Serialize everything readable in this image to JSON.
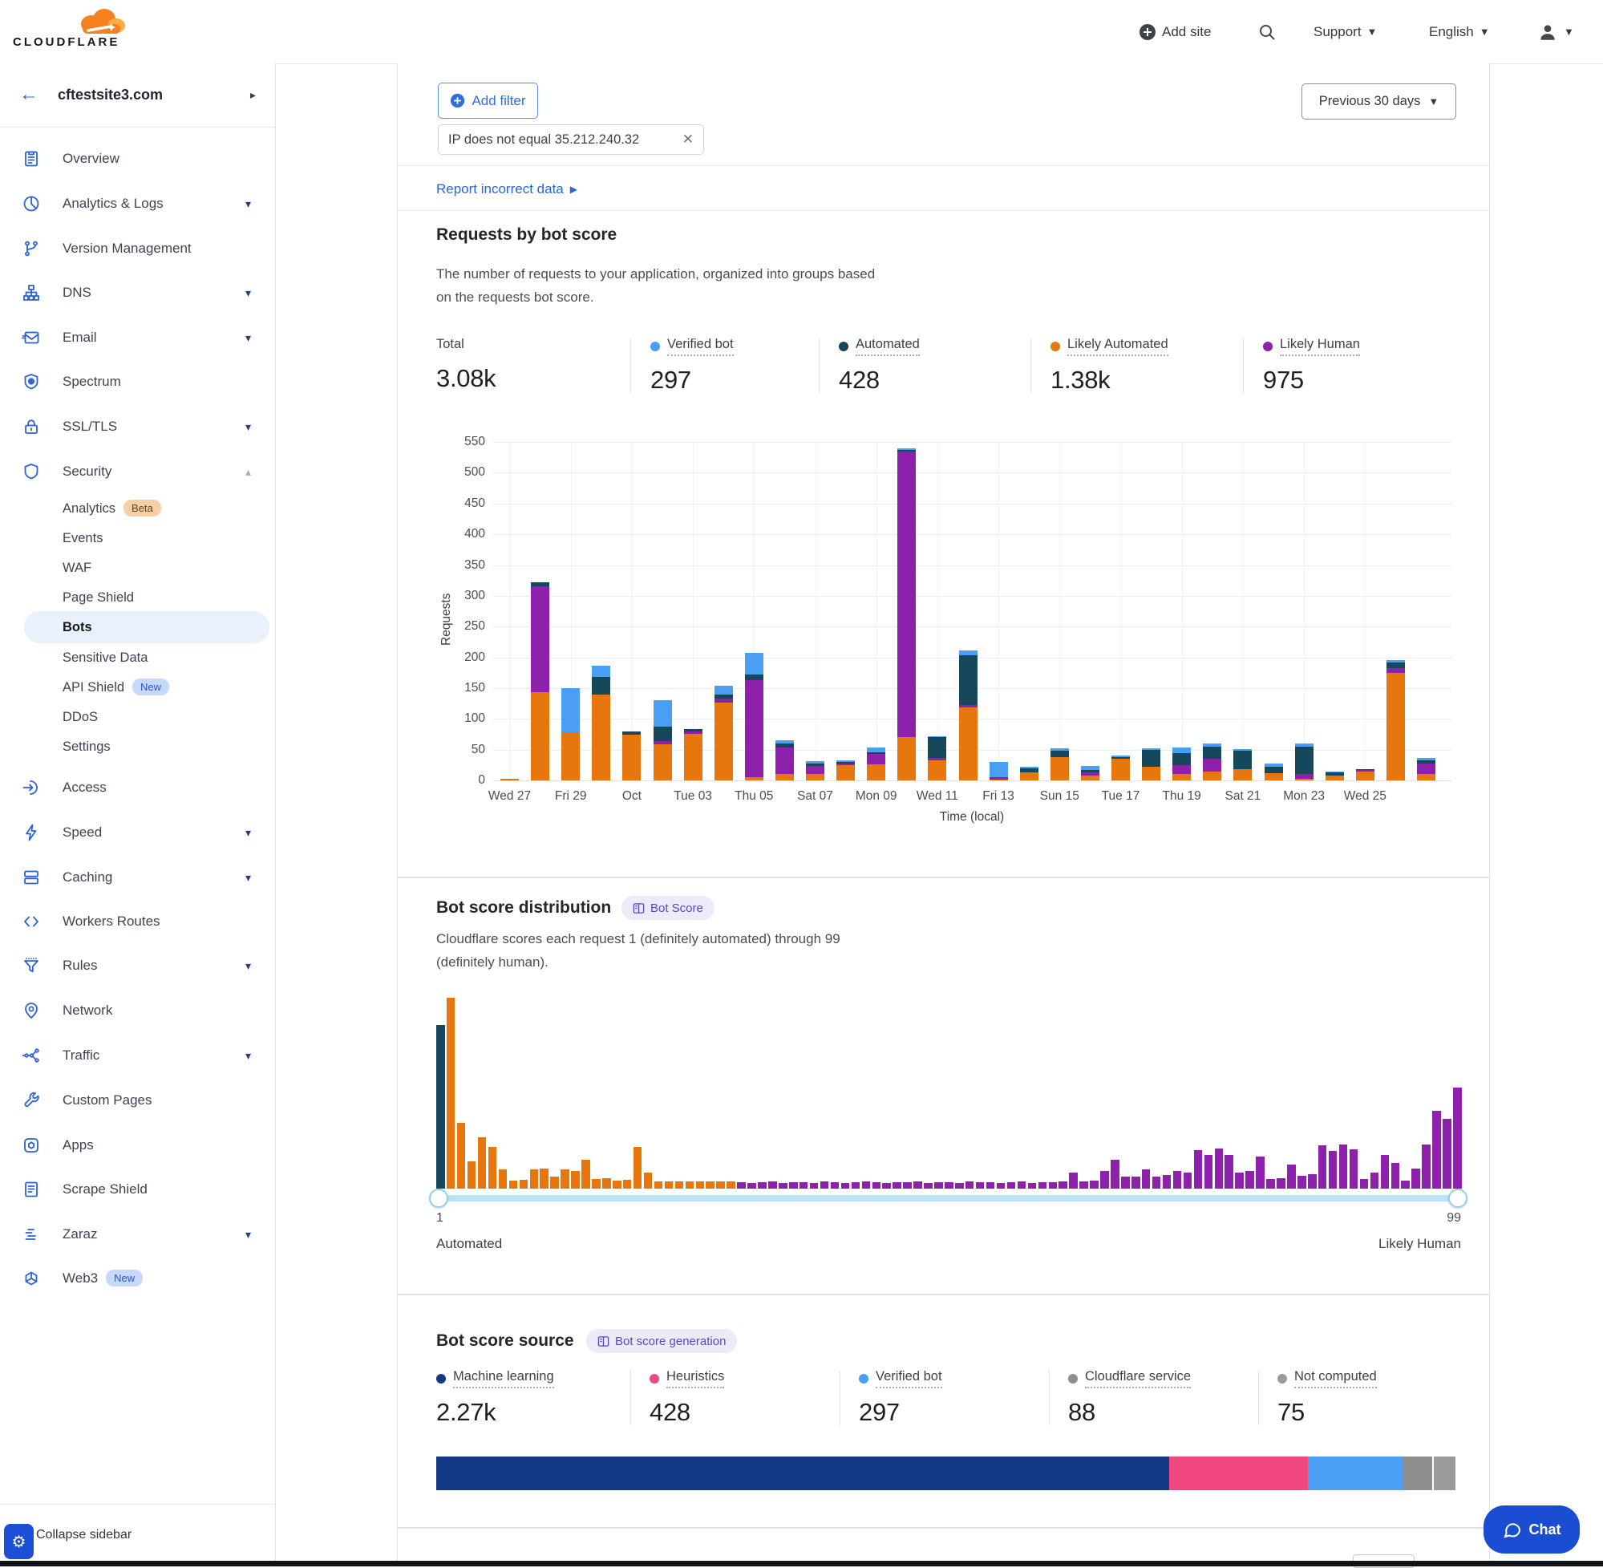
{
  "header": {
    "logo_text": "CLOUDFLARE",
    "add_site": "Add site",
    "support": "Support",
    "language": "English"
  },
  "sidebar": {
    "site": "cftestsite3.com",
    "items": [
      {
        "label": "Overview",
        "icon": "overview-icon"
      },
      {
        "label": "Analytics & Logs",
        "icon": "analytics-icon",
        "caret": "down"
      },
      {
        "label": "Version Management",
        "icon": "version-icon"
      },
      {
        "label": "DNS",
        "icon": "dns-icon",
        "caret": "down"
      },
      {
        "label": "Email",
        "icon": "email-icon",
        "caret": "down"
      },
      {
        "label": "Spectrum",
        "icon": "spectrum-icon"
      },
      {
        "label": "SSL/TLS",
        "icon": "lock-icon",
        "caret": "down"
      },
      {
        "label": "Security",
        "icon": "shield-icon",
        "caret": "up"
      },
      {
        "label": "Analytics",
        "sub": true,
        "badge": {
          "text": "Beta",
          "type": "beta"
        }
      },
      {
        "label": "Events",
        "sub": true
      },
      {
        "label": "WAF",
        "sub": true
      },
      {
        "label": "Page Shield",
        "sub": true
      },
      {
        "label": "Bots",
        "sub": true,
        "selected": true
      },
      {
        "label": "Sensitive Data",
        "sub": true
      },
      {
        "label": "API Shield",
        "sub": true,
        "badge": {
          "text": "New",
          "type": "new"
        }
      },
      {
        "label": "DDoS",
        "sub": true
      },
      {
        "label": "Settings",
        "sub": true
      },
      {
        "label": "Access",
        "icon": "access-icon"
      },
      {
        "label": "Speed",
        "icon": "lightning-icon",
        "caret": "down"
      },
      {
        "label": "Caching",
        "icon": "cache-icon",
        "caret": "down"
      },
      {
        "label": "Workers Routes",
        "icon": "workers-icon"
      },
      {
        "label": "Rules",
        "icon": "funnel-icon",
        "caret": "down"
      },
      {
        "label": "Network",
        "icon": "pin-icon"
      },
      {
        "label": "Traffic",
        "icon": "traffic-icon",
        "caret": "down"
      },
      {
        "label": "Custom Pages",
        "icon": "wrench-icon"
      },
      {
        "label": "Apps",
        "icon": "apps-icon"
      },
      {
        "label": "Scrape Shield",
        "icon": "document-icon"
      },
      {
        "label": "Zaraz",
        "icon": "zaraz-icon",
        "caret": "down"
      },
      {
        "label": "Web3",
        "icon": "web3-icon",
        "badge": {
          "text": "New",
          "type": "new"
        }
      }
    ],
    "collapse_label": "Collapse sidebar"
  },
  "filters": {
    "add_filter_label": "Add filter",
    "chip_label": "IP does not equal 35.212.240.32",
    "time_range": "Previous 30 days",
    "report_link": "Report incorrect data"
  },
  "requests_section": {
    "title": "Requests by bot score",
    "description": "The number of requests to your application, organized into groups based on the requests bot score.",
    "stats": [
      {
        "label": "Total",
        "value": "3.08k",
        "color": null
      },
      {
        "label": "Verified bot",
        "value": "297",
        "color": "#4a9ff5"
      },
      {
        "label": "Automated",
        "value": "428",
        "color": "#15485a"
      },
      {
        "label": "Likely Automated",
        "value": "1.38k",
        "color": "#e8760f"
      },
      {
        "label": "Likely Human",
        "value": "975",
        "color": "#8d21ab"
      }
    ]
  },
  "distribution_section": {
    "title": "Bot score distribution",
    "badge": "Bot Score",
    "description": "Cloudflare scores each request 1 (definitely automated) through 99 (definitely human).",
    "slider": {
      "min": "1",
      "max": "99",
      "min_label": "Automated",
      "max_label": "Likely Human"
    }
  },
  "source_section": {
    "title": "Bot score source",
    "badge": "Bot score generation",
    "stats": [
      {
        "label": "Machine learning",
        "value": "2.27k",
        "color": "#143a85"
      },
      {
        "label": "Heuristics",
        "value": "428",
        "color": "#f0487f"
      },
      {
        "label": "Verified bot",
        "value": "297",
        "color": "#4a9ff5"
      },
      {
        "label": "Cloudflare service",
        "value": "88",
        "color": "#8e8e8e"
      },
      {
        "label": "Not computed",
        "value": "75",
        "color": "#9b9b9b"
      }
    ]
  },
  "chat": {
    "label": "Chat"
  },
  "chart_data": [
    {
      "type": "bar",
      "stacked": true,
      "title": "Requests by bot score",
      "ylabel": "Requests",
      "xlabel": "Time (local)",
      "ylim": [
        0,
        550
      ],
      "ytick_step": 50,
      "grid": true,
      "categories": [
        "Sep 27",
        "Sep 28",
        "Sep 29",
        "Sep 30",
        "Oct 01",
        "Oct 02",
        "Oct 03",
        "Oct 04",
        "Oct 05",
        "Oct 06",
        "Oct 07",
        "Oct 08",
        "Oct 09",
        "Oct 10",
        "Oct 11",
        "Oct 12",
        "Oct 13",
        "Oct 14",
        "Oct 15",
        "Oct 16",
        "Oct 17",
        "Oct 18",
        "Oct 19",
        "Oct 20",
        "Oct 21",
        "Oct 22",
        "Oct 23",
        "Oct 24",
        "Oct 25",
        "Oct 26",
        "Oct 27"
      ],
      "x_tick_labels": [
        "Wed 27",
        "Fri 29",
        "Oct",
        "Tue 03",
        "Thu 05",
        "Sat 07",
        "Mon 09",
        "Wed 11",
        "Fri 13",
        "Sun 15",
        "Tue 17",
        "Thu 19",
        "Sat 21",
        "Mon 23",
        "Wed 25"
      ],
      "series": [
        {
          "name": "Likely Automated",
          "color": "#e8760f",
          "values": [
            3,
            143,
            78,
            140,
            75,
            59,
            76,
            127,
            5,
            11,
            11,
            25,
            26,
            70,
            33,
            119,
            2,
            13,
            38,
            8,
            35,
            22,
            10,
            15,
            18,
            12,
            3,
            8,
            15,
            175,
            10
          ]
        },
        {
          "name": "Likely Human",
          "color": "#8d21ab",
          "values": [
            0,
            172,
            0,
            0,
            0,
            5,
            4,
            6,
            158,
            42,
            12,
            3,
            17,
            465,
            3,
            3,
            3,
            0,
            0,
            5,
            0,
            0,
            15,
            20,
            0,
            0,
            7,
            0,
            2,
            7,
            18
          ]
        },
        {
          "name": "Automated",
          "color": "#15485a",
          "values": [
            0,
            7,
            0,
            28,
            4,
            23,
            4,
            7,
            9,
            7,
            4,
            2,
            3,
            2,
            34,
            81,
            0,
            7,
            10,
            4,
            3,
            28,
            20,
            20,
            30,
            10,
            45,
            5,
            1,
            10,
            5
          ]
        },
        {
          "name": "Verified bot",
          "color": "#4a9ff5",
          "values": [
            0,
            0,
            72,
            19,
            0,
            44,
            0,
            14,
            36,
            5,
            4,
            3,
            7,
            3,
            2,
            8,
            25,
            2,
            4,
            6,
            2,
            2,
            8,
            5,
            3,
            5,
            5,
            1,
            0,
            4,
            3
          ]
        }
      ]
    },
    {
      "type": "bar",
      "title": "Bot score distribution",
      "xlabel_range": [
        1,
        99
      ],
      "group_colors": {
        "automated": "#15485a",
        "likely_automated": "#e8760f",
        "likely_human": "#8d21ab"
      },
      "group_ranges": {
        "automated": [
          1,
          1
        ],
        "likely_automated": [
          2,
          29
        ],
        "likely_human": [
          30,
          99
        ]
      },
      "values": [
        204,
        238,
        82,
        34,
        64,
        52,
        24,
        10,
        11,
        24,
        25,
        15,
        24,
        22,
        36,
        12,
        13,
        10,
        11,
        52,
        20,
        9,
        9,
        9,
        9,
        9,
        9,
        9,
        9,
        8,
        7,
        8,
        9,
        7,
        8,
        8,
        7,
        9,
        8,
        7,
        8,
        9,
        8,
        7,
        8,
        8,
        9,
        7,
        8,
        8,
        7,
        9,
        8,
        8,
        7,
        8,
        9,
        7,
        8,
        8,
        9,
        20,
        9,
        10,
        22,
        36,
        15,
        15,
        24,
        15,
        17,
        22,
        20,
        48,
        42,
        50,
        42,
        20,
        22,
        40,
        12,
        13,
        30,
        16,
        18,
        54,
        47,
        55,
        49,
        12,
        20,
        42,
        32,
        10,
        25,
        55,
        97,
        87,
        126
      ]
    },
    {
      "type": "stacked-horizontal-bar",
      "title": "Bot score source",
      "segments": [
        {
          "label": "Machine learning",
          "value": 2270,
          "pct": 71.9,
          "color": "#143a85"
        },
        {
          "label": "Heuristics",
          "value": 428,
          "pct": 13.6,
          "color": "#f0487f"
        },
        {
          "label": "Verified bot",
          "value": 297,
          "pct": 9.4,
          "color": "#4a9ff5"
        },
        {
          "label": "Cloudflare service",
          "value": 88,
          "pct": 2.8,
          "color": "#8e8e8e"
        },
        {
          "label": "Not computed",
          "value": 75,
          "pct": 2.3,
          "color": "#9b9b9b"
        }
      ]
    }
  ]
}
